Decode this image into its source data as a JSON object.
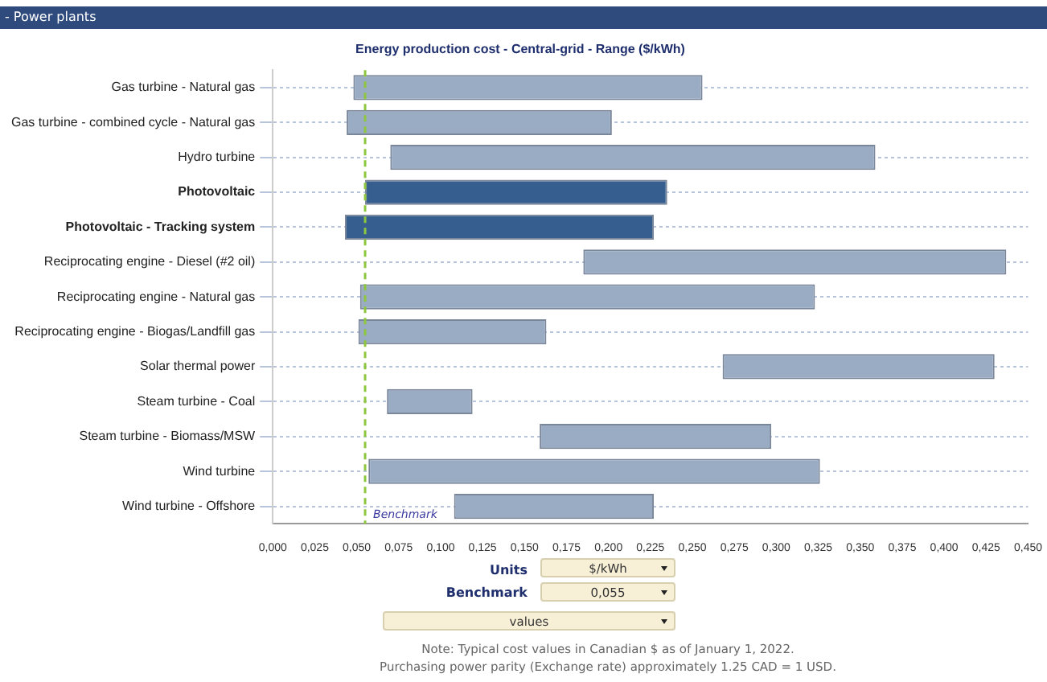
{
  "chart_data": {
    "type": "bar",
    "orientation": "horizontal",
    "title": "Energy production cost - Central-grid - Range ($/kWh)",
    "categories": [
      "Gas turbine - Natural gas",
      "Gas turbine - combined cycle - Natural gas",
      "Hydro turbine",
      "Photovoltaic",
      "Photovoltaic - Tracking system",
      "Reciprocating engine - Diesel (#2 oil)",
      "Reciprocating engine - Natural gas",
      "Reciprocating engine - Biogas/Landfill gas",
      "Solar thermal power",
      "Steam turbine - Coal",
      "Steam turbine - Biomass/MSW",
      "Wind turbine",
      "Wind turbine - Offshore"
    ],
    "base": [
      0.048,
      0.044,
      0.07,
      0.055,
      0.043,
      0.185,
      0.052,
      0.051,
      0.268,
      0.068,
      0.159,
      0.057,
      0.108
    ],
    "values": [
      0.208,
      0.158,
      0.289,
      0.18,
      0.184,
      0.252,
      0.271,
      0.112,
      0.162,
      0.051,
      0.138,
      0.269,
      0.119
    ],
    "colors": [
      "#9aabc4",
      "#9aabc4",
      "#9aabc4",
      "#365f8f",
      "#365f8f",
      "#9aabc4",
      "#9aabc4",
      "#9aabc4",
      "#9aabc4",
      "#9aabc4",
      "#9aabc4",
      "#9aabc4",
      "#9aabc4"
    ],
    "xlim": [
      0,
      0.45
    ],
    "xticks": [
      {
        "value": 0,
        "label": "0,000"
      },
      {
        "value": 0.025,
        "label": "0,025"
      },
      {
        "value": 0.05,
        "label": "0,050"
      },
      {
        "value": 0.075,
        "label": "0,075"
      },
      {
        "value": 0.1,
        "label": "0,100"
      },
      {
        "value": 0.125,
        "label": "0,125"
      },
      {
        "value": 0.15,
        "label": "0,150"
      },
      {
        "value": 0.175,
        "label": "0,175"
      },
      {
        "value": 0.2,
        "label": "0,200"
      },
      {
        "value": 0.225,
        "label": "0,225"
      },
      {
        "value": 0.25,
        "label": "0,250"
      },
      {
        "value": 0.275,
        "label": "0,275"
      },
      {
        "value": 0.3,
        "label": "0,300"
      },
      {
        "value": 0.325,
        "label": "0,325"
      },
      {
        "value": 0.35,
        "label": "0,350"
      },
      {
        "value": 0.375,
        "label": "0,375"
      },
      {
        "value": 0.4,
        "label": "0,400"
      },
      {
        "value": 0.425,
        "label": "0,425"
      },
      {
        "value": 0.45,
        "label": "0,450"
      }
    ],
    "ref_lines": [
      {
        "axis": "x",
        "value": 0.055,
        "label": "Benchmark",
        "color": "#8dc63f",
        "line_style": "dashed"
      }
    ],
    "grid": "y",
    "annotations": [
      "- Power plants",
      "Units",
      "$/kWh",
      "Benchmark",
      "0,055",
      "values",
      "Note: Typical cost values in Canadian $ as of January 1, 2022.",
      "Purchasing power parity (Exchange rate) approximately 1.25 CAD = 1 USD."
    ]
  }
}
